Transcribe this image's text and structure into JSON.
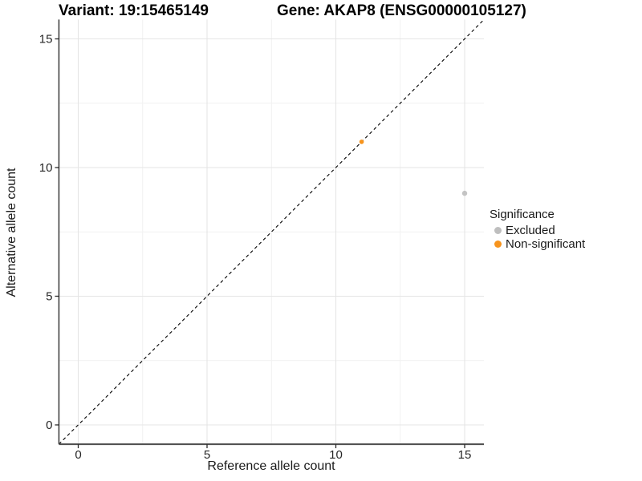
{
  "chart_data": {
    "type": "scatter",
    "title_left": "Variant: 19:15465149",
    "title_right": "Gene: AKAP8 (ENSG00000105127)",
    "xlabel": "Reference allele count",
    "ylabel": "Alternative allele count",
    "xlim": [
      0,
      15
    ],
    "ylim": [
      0,
      15
    ],
    "x_ticks": [
      0,
      5,
      10,
      15
    ],
    "y_ticks": [
      0,
      5,
      10,
      15
    ],
    "x_minor_ticks": [
      2.5,
      7.5,
      12.5
    ],
    "y_minor_ticks": [
      2.5,
      7.5,
      12.5
    ],
    "identity_line": {
      "slope": 1,
      "intercept": 0,
      "style": "dashed",
      "color": "#000000"
    },
    "series": [
      {
        "name": "Excluded",
        "color": "#BEBEBE",
        "marker_radius": 3.2,
        "opacity": 0.9
      },
      {
        "name": "Non-significant",
        "color": "#F7941D",
        "marker_radius": 2.8,
        "opacity": 1
      }
    ],
    "points": [
      {
        "x": 11,
        "y": 11,
        "series": "Non-significant"
      },
      {
        "x": 15,
        "y": 9,
        "series": "Excluded"
      }
    ],
    "legend": {
      "title": "Significance",
      "position": "right"
    },
    "grid": {
      "major_color": "#E5E5E5",
      "minor_color": "#F1F1F1"
    },
    "axis_color": "#4D4D4D",
    "tick_label_color": "#262626"
  }
}
